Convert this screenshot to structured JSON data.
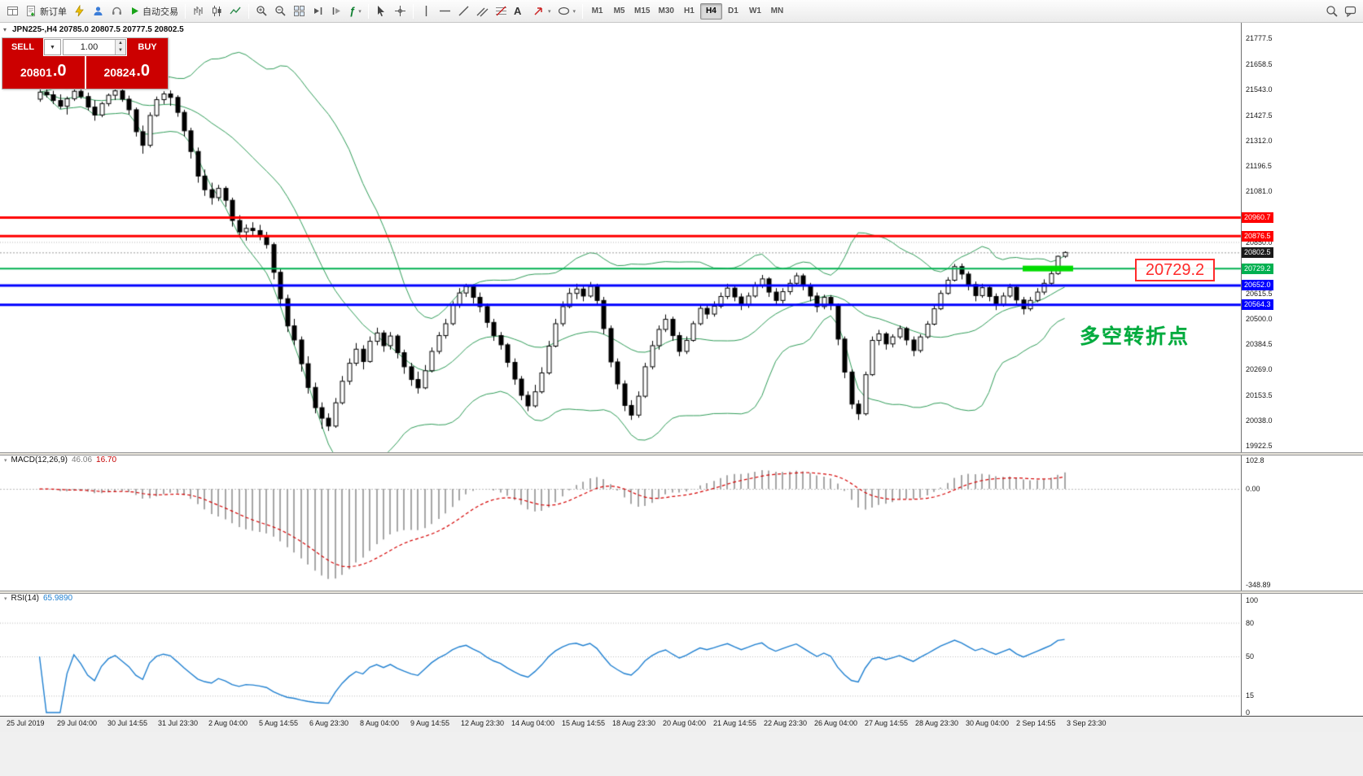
{
  "toolbar": {
    "new_order": "新订单",
    "autotrade": "自动交易",
    "timeframes": [
      "M1",
      "M5",
      "M15",
      "M30",
      "H1",
      "H4",
      "D1",
      "W1",
      "MN"
    ],
    "active_timeframe": "H4"
  },
  "chart_header": {
    "symbol_line": "JPN225-,H4 20785.0 20807.5 20777.5 20802.5"
  },
  "trade_panel": {
    "sell_label": "SELL",
    "buy_label": "BUY",
    "volume": "1.00",
    "sell_price": "20801",
    "sell_price_dec": ".0",
    "buy_price": "20824",
    "buy_price_dec": ".0"
  },
  "annotations": {
    "turning_point": "多空转折点",
    "level_callout": "20729.2",
    "highlight_price": 20729.2
  },
  "price_axis": {
    "ticks": [
      "21777.5",
      "21658.5",
      "21543.0",
      "21427.5",
      "21312.0",
      "21196.5",
      "21081.0",
      "20850.0",
      "20615.5",
      "20500.0",
      "20384.5",
      "20269.0",
      "20153.5",
      "20038.0",
      "19922.5"
    ],
    "current_price": "20802.5",
    "current_badge_color": "#1a1a1a"
  },
  "levels": [
    {
      "value": 20960.7,
      "label": "20960.7",
      "color": "#ff0000",
      "width": 3
    },
    {
      "value": 20876.5,
      "label": "20876.5",
      "color": "#ff0000",
      "width": 3
    },
    {
      "value": 20729.2,
      "label": "20729.2",
      "color": "#00b050",
      "width": 2
    },
    {
      "value": 20652.0,
      "label": "20652.0",
      "color": "#0000ff",
      "width": 3
    },
    {
      "value": 20564.3,
      "label": "20564.3",
      "color": "#0000ff",
      "width": 3
    }
  ],
  "guide_lines": [
    {
      "value": 20850.0,
      "color": "#b5b5b5"
    }
  ],
  "macd_panel": {
    "name": "MACD(12,26,9)",
    "value_main": "46.06",
    "value_signal": "16.70",
    "axis_ticks": [
      "102.8",
      "0.00",
      "-348.89"
    ]
  },
  "rsi_panel": {
    "name": "RSI(14)",
    "value": "65.9890",
    "axis_ticks": [
      "100",
      "80",
      "50",
      "15",
      "0"
    ],
    "level_lines": [
      80,
      50,
      15
    ]
  },
  "time_axis": [
    "25 Jul 2019",
    "29 Jul 04:00",
    "30 Jul 14:55",
    "31 Jul 23:30",
    "2 Aug 04:00",
    "5 Aug 14:55",
    "6 Aug 23:30",
    "8 Aug 04:00",
    "9 Aug 14:55",
    "12 Aug 23:30",
    "14 Aug 04:00",
    "15 Aug 14:55",
    "18 Aug 23:30",
    "20 Aug 04:00",
    "21 Aug 14:55",
    "22 Aug 23:30",
    "26 Aug 04:00",
    "27 Aug 14:55",
    "28 Aug 23:30",
    "30 Aug 04:00",
    "2 Sep 14:55",
    "3 Sep 23:30"
  ],
  "chart_data": {
    "type": "candlestick",
    "symbol": "JPN225-",
    "timeframe": "H4",
    "y_range": [
      19922.5,
      21777.5
    ],
    "overlays": [
      {
        "name": "Bollinger Bands",
        "period": 20,
        "deviation": 2,
        "color": "#2e9b57"
      }
    ],
    "indicators": [
      {
        "name": "MACD",
        "params": [
          12,
          26,
          9
        ],
        "range": [
          -348.89,
          102.8
        ]
      },
      {
        "name": "RSI",
        "params": [
          14
        ],
        "range": [
          0,
          100
        ]
      }
    ],
    "ohlc": [
      [
        21500,
        21548,
        21488,
        21532
      ],
      [
        21532,
        21552,
        21508,
        21520
      ],
      [
        21520,
        21538,
        21478,
        21494
      ],
      [
        21494,
        21522,
        21456,
        21468
      ],
      [
        21468,
        21512,
        21430,
        21502
      ],
      [
        21502,
        21548,
        21492,
        21536
      ],
      [
        21536,
        21562,
        21502,
        21512
      ],
      [
        21512,
        21530,
        21448,
        21464
      ],
      [
        21464,
        21496,
        21402,
        21428
      ],
      [
        21428,
        21488,
        21418,
        21480
      ],
      [
        21480,
        21526,
        21468,
        21518
      ],
      [
        21518,
        21544,
        21496,
        21538
      ],
      [
        21538,
        21550,
        21488,
        21500
      ],
      [
        21500,
        21516,
        21430,
        21452
      ],
      [
        21452,
        21462,
        21330,
        21352
      ],
      [
        21352,
        21380,
        21252,
        21290
      ],
      [
        21290,
        21440,
        21280,
        21426
      ],
      [
        21426,
        21512,
        21420,
        21498
      ],
      [
        21498,
        21536,
        21478,
        21524
      ],
      [
        21524,
        21540,
        21470,
        21508
      ],
      [
        21508,
        21518,
        21420,
        21440
      ],
      [
        21440,
        21452,
        21330,
        21356
      ],
      [
        21356,
        21370,
        21230,
        21262
      ],
      [
        21262,
        21280,
        21120,
        21150
      ],
      [
        21150,
        21180,
        21060,
        21088
      ],
      [
        21088,
        21120,
        21020,
        21052
      ],
      [
        21052,
        21110,
        21036,
        21094
      ],
      [
        21094,
        21104,
        21010,
        21040
      ],
      [
        21040,
        21052,
        20920,
        20948
      ],
      [
        20948,
        20972,
        20870,
        20896
      ],
      [
        20896,
        20930,
        20856,
        20912
      ],
      [
        20912,
        20940,
        20880,
        20902
      ],
      [
        20902,
        20928,
        20858,
        20876
      ],
      [
        20876,
        20896,
        20820,
        20838
      ],
      [
        20838,
        20848,
        20680,
        20712
      ],
      [
        20712,
        20730,
        20560,
        20592
      ],
      [
        20592,
        20610,
        20440,
        20468
      ],
      [
        20468,
        20500,
        20380,
        20404
      ],
      [
        20404,
        20420,
        20260,
        20296
      ],
      [
        20296,
        20330,
        20160,
        20188
      ],
      [
        20188,
        20210,
        20070,
        20096
      ],
      [
        20096,
        20120,
        20000,
        20048
      ],
      [
        20048,
        20070,
        19990,
        20012
      ],
      [
        20012,
        20140,
        20004,
        20118
      ],
      [
        20118,
        20240,
        20110,
        20216
      ],
      [
        20216,
        20320,
        20200,
        20298
      ],
      [
        20298,
        20390,
        20286,
        20362
      ],
      [
        20362,
        20380,
        20270,
        20306
      ],
      [
        20306,
        20420,
        20300,
        20398
      ],
      [
        20398,
        20460,
        20380,
        20436
      ],
      [
        20436,
        20448,
        20350,
        20378
      ],
      [
        20378,
        20440,
        20360,
        20422
      ],
      [
        20422,
        20430,
        20320,
        20346
      ],
      [
        20346,
        20360,
        20250,
        20282
      ],
      [
        20282,
        20300,
        20195,
        20224
      ],
      [
        20224,
        20260,
        20160,
        20186
      ],
      [
        20186,
        20290,
        20180,
        20264
      ],
      [
        20264,
        20370,
        20256,
        20352
      ],
      [
        20352,
        20440,
        20340,
        20424
      ],
      [
        20424,
        20500,
        20410,
        20478
      ],
      [
        20478,
        20580,
        20470,
        20562
      ],
      [
        20562,
        20640,
        20550,
        20618
      ],
      [
        20618,
        20660,
        20600,
        20648
      ],
      [
        20648,
        20656,
        20570,
        20598
      ],
      [
        20598,
        20620,
        20530,
        20556
      ],
      [
        20556,
        20570,
        20460,
        20484
      ],
      [
        20484,
        20500,
        20400,
        20424
      ],
      [
        20424,
        20440,
        20360,
        20382
      ],
      [
        20382,
        20390,
        20280,
        20302
      ],
      [
        20302,
        20320,
        20200,
        20226
      ],
      [
        20226,
        20240,
        20130,
        20152
      ],
      [
        20152,
        20170,
        20080,
        20104
      ],
      [
        20104,
        20200,
        20096,
        20168
      ],
      [
        20168,
        20280,
        20160,
        20254
      ],
      [
        20254,
        20400,
        20246,
        20376
      ],
      [
        20376,
        20500,
        20370,
        20478
      ],
      [
        20478,
        20580,
        20466,
        20556
      ],
      [
        20556,
        20640,
        20548,
        20616
      ],
      [
        20616,
        20660,
        20590,
        20636
      ],
      [
        20636,
        20648,
        20580,
        20604
      ],
      [
        20604,
        20668,
        20596,
        20648
      ],
      [
        20648,
        20660,
        20560,
        20584
      ],
      [
        20584,
        20600,
        20430,
        20456
      ],
      [
        20456,
        20470,
        20280,
        20304
      ],
      [
        20304,
        20320,
        20180,
        20204
      ],
      [
        20204,
        20220,
        20080,
        20106
      ],
      [
        20106,
        20130,
        20040,
        20062
      ],
      [
        20062,
        20170,
        20050,
        20148
      ],
      [
        20148,
        20300,
        20140,
        20282
      ],
      [
        20282,
        20400,
        20270,
        20378
      ],
      [
        20378,
        20470,
        20360,
        20452
      ],
      [
        20452,
        20520,
        20440,
        20498
      ],
      [
        20498,
        20510,
        20400,
        20424
      ],
      [
        20424,
        20440,
        20330,
        20352
      ],
      [
        20352,
        20420,
        20340,
        20402
      ],
      [
        20402,
        20490,
        20396,
        20478
      ],
      [
        20478,
        20560,
        20470,
        20548
      ],
      [
        20548,
        20560,
        20500,
        20522
      ],
      [
        20522,
        20580,
        20510,
        20558
      ],
      [
        20558,
        20620,
        20548,
        20602
      ],
      [
        20602,
        20660,
        20590,
        20640
      ],
      [
        20640,
        20650,
        20580,
        20600
      ],
      [
        20600,
        20616,
        20540,
        20562
      ],
      [
        20562,
        20620,
        20550,
        20604
      ],
      [
        20604,
        20668,
        20596,
        20652
      ],
      [
        20652,
        20700,
        20640,
        20682
      ],
      [
        20682,
        20690,
        20600,
        20622
      ],
      [
        20622,
        20640,
        20560,
        20584
      ],
      [
        20584,
        20640,
        20570,
        20624
      ],
      [
        20624,
        20680,
        20610,
        20662
      ],
      [
        20662,
        20710,
        20650,
        20696
      ],
      [
        20696,
        20706,
        20630,
        20652
      ],
      [
        20652,
        20664,
        20580,
        20604
      ],
      [
        20604,
        20620,
        20530,
        20556
      ],
      [
        20556,
        20610,
        20544,
        20598
      ],
      [
        20598,
        20608,
        20540,
        20562
      ],
      [
        20562,
        20570,
        20380,
        20408
      ],
      [
        20408,
        20420,
        20230,
        20258
      ],
      [
        20258,
        20270,
        20090,
        20112
      ],
      [
        20112,
        20130,
        20040,
        20068
      ],
      [
        20068,
        20260,
        20060,
        20246
      ],
      [
        20246,
        20420,
        20240,
        20402
      ],
      [
        20402,
        20450,
        20380,
        20432
      ],
      [
        20432,
        20440,
        20360,
        20386
      ],
      [
        20386,
        20430,
        20370,
        20418
      ],
      [
        20418,
        20470,
        20408,
        20456
      ],
      [
        20456,
        20464,
        20380,
        20404
      ],
      [
        20404,
        20420,
        20330,
        20356
      ],
      [
        20356,
        20430,
        20346,
        20418
      ],
      [
        20418,
        20490,
        20410,
        20476
      ],
      [
        20476,
        20560,
        20470,
        20546
      ],
      [
        20546,
        20630,
        20540,
        20616
      ],
      [
        20616,
        20690,
        20610,
        20676
      ],
      [
        20676,
        20750,
        20670,
        20738
      ],
      [
        20738,
        20752,
        20680,
        20704
      ],
      [
        20704,
        20716,
        20630,
        20656
      ],
      [
        20656,
        20670,
        20580,
        20606
      ],
      [
        20606,
        20660,
        20596,
        20642
      ],
      [
        20642,
        20650,
        20580,
        20602
      ],
      [
        20602,
        20616,
        20540,
        20566
      ],
      [
        20566,
        20620,
        20556,
        20604
      ],
      [
        20604,
        20660,
        20596,
        20644
      ],
      [
        20644,
        20650,
        20560,
        20586
      ],
      [
        20586,
        20600,
        20520,
        20546
      ],
      [
        20546,
        20600,
        20536,
        20584
      ],
      [
        20584,
        20640,
        20576,
        20622
      ],
      [
        20622,
        20680,
        20610,
        20662
      ],
      [
        20662,
        20720,
        20654,
        20706
      ],
      [
        20706,
        20788,
        20700,
        20785
      ],
      [
        20785,
        20807.5,
        20777.5,
        20802.5
      ]
    ]
  }
}
